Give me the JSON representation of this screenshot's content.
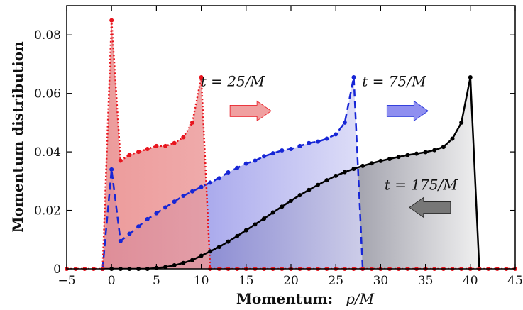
{
  "chart_data": {
    "type": "line",
    "title": "",
    "xlabel_bold": "Momentum:",
    "xlabel_math": "p/M",
    "ylabel": "Momentum distribution",
    "xlim": [
      -5,
      45
    ],
    "ylim": [
      0,
      0.09
    ],
    "xticks": [
      -5,
      0,
      5,
      10,
      15,
      20,
      25,
      30,
      35,
      40,
      45
    ],
    "xtick_labels": [
      "−5",
      "0",
      "5",
      "10",
      "15",
      "20",
      "25",
      "30",
      "35",
      "40",
      "45"
    ],
    "yticks": [
      0,
      0.02,
      0.04,
      0.06,
      0.08
    ],
    "ytick_labels": [
      "0",
      "0.02",
      "0.04",
      "0.06",
      "0.08"
    ],
    "grid": false,
    "legend": "none",
    "series": [
      {
        "style": "dotted-markers",
        "color": "#e8141d",
        "fill": "red-gradient",
        "x": [
          -5,
          -4,
          -3,
          -2,
          -1,
          0,
          1,
          2,
          3,
          4,
          5,
          6,
          7,
          8,
          9,
          10,
          11,
          12,
          13,
          14,
          15,
          16,
          17,
          18,
          19,
          20,
          21,
          22,
          23,
          24,
          25,
          26,
          27,
          28,
          29,
          30,
          31,
          32,
          33,
          34,
          35,
          36,
          37,
          38,
          39,
          40,
          41,
          42,
          43,
          44,
          45
        ],
        "y": [
          0,
          0,
          0,
          0,
          0,
          0.085,
          0.037,
          0.039,
          0.04,
          0.041,
          0.042,
          0.042,
          0.043,
          0.045,
          0.05,
          0.0655,
          0,
          0,
          0,
          0,
          0,
          0,
          0,
          0,
          0,
          0,
          0,
          0,
          0,
          0,
          0,
          0,
          0,
          0,
          0,
          0,
          0,
          0,
          0,
          0,
          0,
          0,
          0,
          0,
          0,
          0,
          0,
          0,
          0,
          0,
          0
        ]
      },
      {
        "style": "dashed-markers",
        "color": "#1726d6",
        "fill": "blue-gradient",
        "x": [
          -1,
          0,
          1,
          2,
          3,
          4,
          5,
          6,
          7,
          8,
          9,
          10,
          11,
          12,
          13,
          14,
          15,
          16,
          17,
          18,
          19,
          20,
          21,
          22,
          23,
          24,
          25,
          26,
          27,
          28
        ],
        "y": [
          0,
          0.034,
          0.0095,
          0.012,
          0.0145,
          0.017,
          0.019,
          0.021,
          0.023,
          0.025,
          0.0265,
          0.028,
          0.0295,
          0.031,
          0.033,
          0.0345,
          0.036,
          0.037,
          0.0385,
          0.0395,
          0.0405,
          0.041,
          0.042,
          0.043,
          0.0435,
          0.0445,
          0.046,
          0.05,
          0.0655,
          0
        ]
      },
      {
        "style": "solid-markers",
        "color": "#000000",
        "fill": "dark-gradient",
        "x": [
          -1,
          0,
          1,
          2,
          3,
          4,
          5,
          6,
          7,
          8,
          9,
          10,
          11,
          12,
          13,
          14,
          15,
          16,
          17,
          18,
          19,
          20,
          21,
          22,
          23,
          24,
          25,
          26,
          27,
          28,
          29,
          30,
          31,
          32,
          33,
          34,
          35,
          36,
          37,
          38,
          39,
          40,
          41
        ],
        "y": [
          0,
          0,
          0,
          0,
          0,
          0,
          0.0003,
          0.0006,
          0.0012,
          0.002,
          0.003,
          0.0045,
          0.006,
          0.0075,
          0.0093,
          0.0112,
          0.0132,
          0.0152,
          0.0172,
          0.0193,
          0.0213,
          0.0233,
          0.0252,
          0.027,
          0.0287,
          0.0303,
          0.0318,
          0.0331,
          0.0342,
          0.0352,
          0.0361,
          0.0369,
          0.0376,
          0.0383,
          0.0389,
          0.0394,
          0.0399,
          0.0406,
          0.0417,
          0.0445,
          0.05,
          0.0655,
          0
        ]
      }
    ],
    "annotations": [
      {
        "text": "t = 25/M",
        "x": 13.5,
        "y": 0.0625
      },
      {
        "text": "t = 75/M",
        "x": 31.5,
        "y": 0.0625
      },
      {
        "text": "t = 175/M",
        "x": 34.5,
        "y": 0.027
      }
    ],
    "arrows": [
      {
        "direction": "right",
        "color": "#f0a0a0",
        "stroke": "#e8141d",
        "x": 15.5,
        "y": 0.054
      },
      {
        "direction": "right",
        "color": "#8f8ff0",
        "stroke": "#1726d6",
        "x": 33,
        "y": 0.054
      },
      {
        "direction": "left",
        "color": "#777777",
        "stroke": "#222222",
        "x": 35.5,
        "y": 0.021
      }
    ]
  }
}
